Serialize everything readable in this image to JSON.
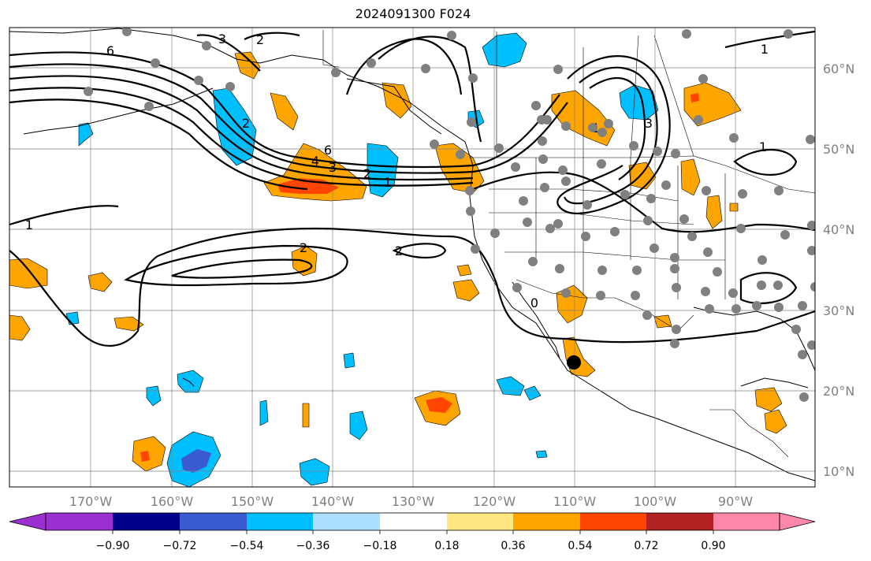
{
  "title": "2024091300 F024",
  "latitude_labels": [
    "60°N",
    "50°N",
    "40°N",
    "30°N",
    "20°N",
    "10°N"
  ],
  "longitude_labels": [
    "170°W",
    "160°W",
    "150°W",
    "140°W",
    "130°W",
    "120°W",
    "110°W",
    "100°W",
    "90°W"
  ],
  "colorbar": {
    "tick_labels": [
      "−0.90",
      "−0.72",
      "−0.54",
      "−0.36",
      "−0.18",
      "0.18",
      "0.36",
      "0.54",
      "0.72",
      "0.90"
    ],
    "colors": [
      "#9b30d0",
      "#00008b",
      "#3a5bd0",
      "#00bfff",
      "#aadfff",
      "#ffffff",
      "#ffe680",
      "#ffa500",
      "#ff4500",
      "#b22222",
      "#ff88aa"
    ]
  },
  "contour_labels": [
    "6",
    "4",
    "3",
    "2",
    "1",
    "1",
    "2",
    "2",
    "3",
    "2",
    "1",
    "6",
    "1",
    "3",
    "0",
    "1",
    "2"
  ],
  "colors": {
    "land": "#ffffff",
    "ocean": "#ffffff",
    "station": "#808080",
    "marker": "#000000",
    "orange": "#ffa500",
    "red": "#ff4500",
    "blue": "#00bfff",
    "darkblue": "#3a5bd0"
  }
}
